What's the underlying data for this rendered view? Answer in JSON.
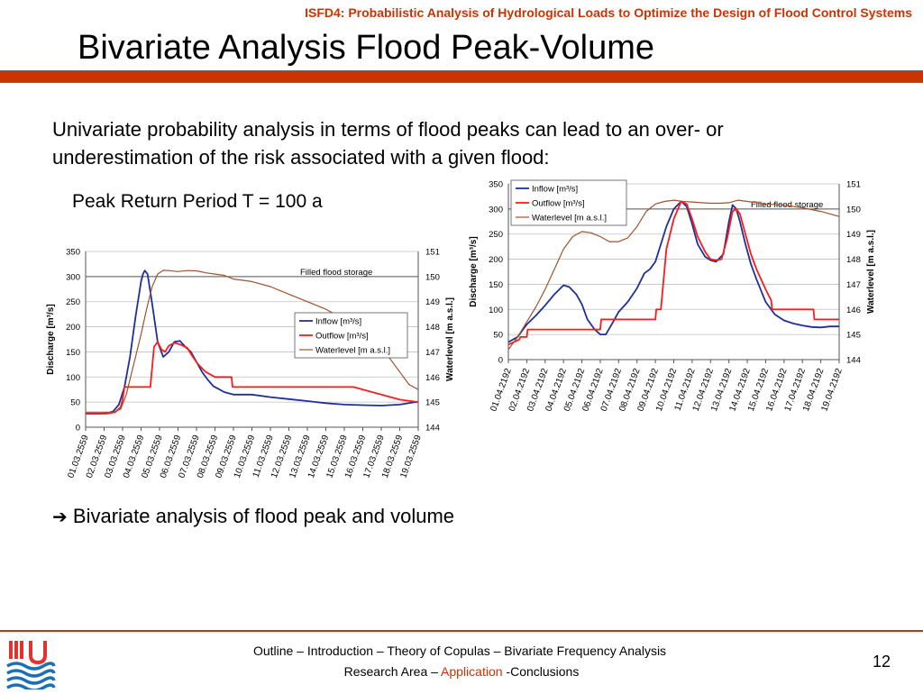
{
  "header": {
    "project_title": "ISFD4: Probabilistic Analysis of Hydrological Loads to Optimize the Design of Flood Control Systems",
    "slide_title": "Bivariate Analysis Flood Peak-Volume"
  },
  "body": {
    "intro_text": "Univariate probability analysis in terms of flood peaks can lead to an over- or underestimation of the risk associated with a given flood:",
    "peak_label": "Peak Return Period T = 100 a",
    "conclusion_arrow": "➔",
    "conclusion_text": "Bivariate analysis of flood peak and volume"
  },
  "footer": {
    "line1_a": "Outline – Introduction – Theory of Copulas – ",
    "line1_b": "Bivariate Frequency Analysis",
    "line2_a": "Research Area – ",
    "line2_b": "Application",
    "line2_c": " -Conclusions",
    "page_number": "12",
    "accent_color": "#cc3300"
  },
  "chart_data": [
    {
      "type": "line",
      "ylabel": "Discharge [m³/s]",
      "y2label": "Waterlevel [m a.s.l.]",
      "ylim": [
        0,
        350
      ],
      "y2lim": [
        144,
        151
      ],
      "yticks": [
        0,
        50,
        100,
        150,
        200,
        250,
        300,
        350
      ],
      "y2ticks": [
        144,
        145,
        146,
        147,
        148,
        149,
        150,
        151
      ],
      "xlim": [
        0,
        18
      ],
      "x_tick_labels": [
        "01.03.2559",
        "02.03.2559",
        "03.03.2559",
        "04.03.2559",
        "05.03.2559",
        "06.03.2559",
        "07.03.2559",
        "08.03.2559",
        "09.03.2559",
        "10.03.2559",
        "11.03.2559",
        "12.03.2559",
        "13.03.2559",
        "14.03.2559",
        "15.03.2559",
        "16.03.2559",
        "17.03.2559",
        "18.03.2559",
        "19.03.2559"
      ],
      "legend_position": "right",
      "annotation": "Filled flood storage",
      "storage_level": 150,
      "series": [
        {
          "name": "Inflow [m³/s]",
          "axis": "left",
          "color": "#1f2f9a",
          "x": [
            0,
            0.8,
            1.2,
            1.5,
            1.8,
            2.1,
            2.4,
            2.7,
            3.0,
            3.1,
            3.2,
            3.35,
            3.5,
            3.7,
            3.9,
            4.2,
            4.5,
            4.8,
            5.1,
            5.4,
            5.7,
            6.0,
            6.3,
            6.6,
            6.9,
            7.5,
            8.0,
            8.5,
            9.0,
            10,
            11,
            12,
            13,
            14,
            15,
            16,
            17,
            18
          ],
          "y": [
            27,
            27,
            28,
            32,
            45,
            80,
            140,
            220,
            290,
            305,
            312,
            305,
            270,
            220,
            170,
            140,
            150,
            170,
            172,
            160,
            150,
            130,
            110,
            95,
            82,
            70,
            65,
            65,
            65,
            60,
            56,
            52,
            48,
            45,
            44,
            43,
            45,
            51
          ]
        },
        {
          "name": "Outflow [m³/s]",
          "axis": "left",
          "color": "#ff1a1a",
          "x": [
            0,
            1.1,
            1.6,
            1.9,
            2.0,
            2.1,
            3.5,
            3.55,
            3.7,
            3.9,
            4.1,
            4.3,
            4.5,
            4.8,
            5.1,
            5.5,
            5.8,
            6.1,
            6.5,
            7.0,
            7.6,
            7.9,
            7.95,
            9.0,
            10,
            11,
            12,
            13,
            14,
            14.5,
            15,
            16,
            17,
            18
          ],
          "y": [
            27,
            27,
            30,
            40,
            55,
            80,
            80,
            100,
            160,
            170,
            155,
            150,
            162,
            168,
            165,
            158,
            140,
            125,
            110,
            100,
            100,
            100,
            80,
            80,
            80,
            80,
            80,
            80,
            80,
            80,
            75,
            65,
            55,
            50
          ]
        },
        {
          "name": "Waterlevel [m a.s.l.]",
          "axis": "right",
          "color": "#a0522d",
          "x": [
            0,
            1.5,
            1.9,
            2.2,
            2.6,
            3.0,
            3.3,
            3.6,
            3.9,
            4.2,
            4.5,
            5.0,
            5.5,
            6.0,
            6.5,
            7.0,
            7.5,
            8.0,
            9.0,
            10,
            11,
            12,
            13,
            14,
            15,
            15.5,
            16,
            16.5,
            17,
            17.5,
            18
          ],
          "y": [
            144.6,
            144.6,
            144.72,
            145.3,
            146.5,
            147.7,
            148.7,
            149.6,
            150.1,
            150.25,
            150.24,
            150.2,
            150.24,
            150.23,
            150.15,
            150.1,
            150.05,
            149.9,
            149.8,
            149.6,
            149.3,
            149.0,
            148.7,
            148.3,
            147.9,
            147.6,
            147.2,
            146.7,
            146.2,
            145.7,
            145.5
          ]
        }
      ]
    },
    {
      "type": "line",
      "ylabel": "Discharge [m³/s]",
      "y2label": "Waterlevel [m a.s.l.]",
      "ylim": [
        0,
        350
      ],
      "y2lim": [
        144,
        151
      ],
      "yticks": [
        0,
        50,
        100,
        150,
        200,
        250,
        300,
        350
      ],
      "y2ticks": [
        144,
        145,
        146,
        147,
        148,
        149,
        150,
        151
      ],
      "xlim": [
        0,
        18
      ],
      "x_tick_labels": [
        "01.04.2192",
        "02.04.2192",
        "03.04.2192",
        "04.04.2192",
        "05.04.2192",
        "06.04.2192",
        "07.04.2192",
        "08.04.2192",
        "09.04.2192",
        "10.04.2192",
        "11.04.2192",
        "12.04.2192",
        "13.04.2192",
        "14.04.2192",
        "15.04.2192",
        "16.04.2192",
        "17.04.2192",
        "18.04.2192",
        "19.04.2192"
      ],
      "legend_position": "top-left",
      "annotation": "Filled flood storage",
      "storage_level": 150,
      "series": [
        {
          "name": "Inflow [m³/s]",
          "axis": "left",
          "color": "#1f2f9a",
          "x": [
            0,
            0.5,
            1.0,
            1.5,
            2.0,
            2.5,
            3.0,
            3.3,
            3.7,
            4.0,
            4.3,
            4.7,
            5.0,
            5.3,
            5.7,
            6.0,
            6.5,
            7.0,
            7.4,
            7.7,
            8.0,
            8.3,
            8.6,
            9.0,
            9.4,
            9.7,
            10.0,
            10.3,
            10.7,
            11.0,
            11.3,
            11.7,
            12.0,
            12.2,
            12.4,
            12.6,
            12.9,
            13.2,
            13.5,
            14.0,
            14.5,
            15.0,
            15.5,
            16.0,
            16.5,
            17.0,
            17.5,
            18.0
          ],
          "y": [
            35,
            45,
            70,
            88,
            108,
            130,
            148,
            145,
            130,
            110,
            80,
            60,
            50,
            50,
            75,
            95,
            115,
            142,
            172,
            180,
            195,
            230,
            265,
            300,
            315,
            305,
            270,
            230,
            205,
            198,
            195,
            210,
            275,
            308,
            300,
            275,
            230,
            190,
            160,
            115,
            90,
            78,
            72,
            68,
            65,
            64,
            66,
            66
          ]
        },
        {
          "name": "Outflow [m³/s]",
          "axis": "left",
          "color": "#ff1a1a",
          "x": [
            0,
            0.6,
            0.65,
            1.0,
            1.05,
            5.0,
            5.05,
            8.0,
            8.05,
            8.3,
            8.6,
            9.0,
            9.4,
            9.7,
            10.0,
            10.3,
            10.7,
            11.0,
            11.3,
            11.6,
            11.9,
            12.2,
            12.4,
            12.6,
            12.9,
            13.2,
            13.5,
            14.0,
            14.3,
            14.35,
            16.6,
            16.65,
            18.0
          ],
          "y": [
            30,
            40,
            45,
            45,
            60,
            60,
            80,
            80,
            100,
            100,
            220,
            280,
            315,
            310,
            280,
            245,
            215,
            200,
            198,
            200,
            240,
            295,
            300,
            290,
            250,
            210,
            180,
            140,
            118,
            100,
            100,
            80,
            80
          ]
        },
        {
          "name": "Waterlevel [m a.s.l.]",
          "axis": "right",
          "color": "#a0522d",
          "x": [
            0,
            0.5,
            1.0,
            1.5,
            2.0,
            2.5,
            3.0,
            3.5,
            4.0,
            4.5,
            5.0,
            5.5,
            6.0,
            6.5,
            7.0,
            7.5,
            8.0,
            8.5,
            9.0,
            9.5,
            10.0,
            10.5,
            11.0,
            11.5,
            12.0,
            12.5,
            13.0,
            13.5,
            14.0,
            15.0,
            16.0,
            17.0,
            18.0
          ],
          "y": [
            144.4,
            144.9,
            145.5,
            146.1,
            146.8,
            147.6,
            148.4,
            148.9,
            149.1,
            149.05,
            148.9,
            148.7,
            148.7,
            148.85,
            149.3,
            149.9,
            150.2,
            150.3,
            150.35,
            150.3,
            150.28,
            150.25,
            150.23,
            150.23,
            150.25,
            150.35,
            150.3,
            150.25,
            150.2,
            150.15,
            150.05,
            149.9,
            149.7
          ]
        }
      ]
    }
  ]
}
